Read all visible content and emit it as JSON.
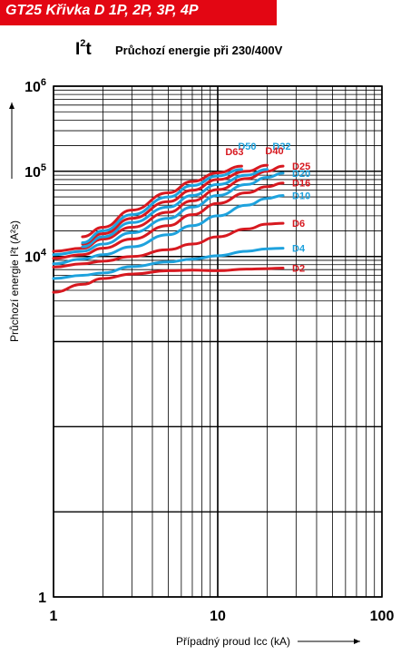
{
  "header": {
    "title": "GT25 Křivka D  1P, 2P, 3P, 4P",
    "bg_color": "#e30613"
  },
  "chart_heading": {
    "symbol": "I",
    "symbol_sup": "2",
    "symbol_suffix": "t",
    "subtitle": "Průchozí energie při 230/400V"
  },
  "chart_data": {
    "type": "line",
    "x_scale": "log",
    "y_scale": "log",
    "xlim": [
      1,
      100
    ],
    "ylim": [
      1,
      1000000
    ],
    "grid": true,
    "xlabel": "Případný proud  Icc (kA)",
    "ylabel": "Průchozí energie  I²t (A²s)",
    "x_ticks": [
      "1",
      "10",
      "100"
    ],
    "y_ticks": [
      {
        "base": "1",
        "exp": ""
      },
      {
        "base": "10",
        "exp": "4"
      },
      {
        "base": "10",
        "exp": "5"
      },
      {
        "base": "10",
        "exp": "6"
      }
    ],
    "series": [
      {
        "name": "D2",
        "color": "#d71920",
        "label_side": "right",
        "points": [
          [
            1,
            3800
          ],
          [
            1.5,
            4700
          ],
          [
            2,
            5500
          ],
          [
            3,
            6200
          ],
          [
            5,
            6800
          ],
          [
            7,
            6900
          ],
          [
            10,
            6800
          ],
          [
            15,
            7100
          ],
          [
            20,
            7200
          ],
          [
            25,
            7300
          ]
        ]
      },
      {
        "name": "D4",
        "color": "#1ea2dd",
        "label_side": "right",
        "points": [
          [
            1,
            5500
          ],
          [
            1.5,
            6000
          ],
          [
            2,
            6400
          ],
          [
            3,
            7600
          ],
          [
            5,
            8600
          ],
          [
            7,
            9300
          ],
          [
            10,
            10200
          ],
          [
            15,
            11500
          ],
          [
            20,
            12300
          ],
          [
            25,
            12500
          ]
        ]
      },
      {
        "name": "D6",
        "color": "#d71920",
        "label_side": "right",
        "points": [
          [
            1,
            7500
          ],
          [
            1.5,
            8200
          ],
          [
            2,
            8800
          ],
          [
            3,
            10000
          ],
          [
            5,
            12000
          ],
          [
            7,
            14000
          ],
          [
            10,
            17000
          ],
          [
            15,
            21000
          ],
          [
            20,
            24000
          ],
          [
            25,
            24500
          ]
        ]
      },
      {
        "name": "D10",
        "color": "#1ea2dd",
        "label_side": "right",
        "points": [
          [
            1,
            8200
          ],
          [
            1.5,
            9300
          ],
          [
            2,
            10500
          ],
          [
            3,
            13000
          ],
          [
            5,
            18000
          ],
          [
            7,
            23000
          ],
          [
            10,
            30000
          ],
          [
            15,
            40000
          ],
          [
            20,
            48000
          ],
          [
            25,
            52000
          ]
        ]
      },
      {
        "name": "D16",
        "color": "#d71920",
        "label_side": "right",
        "points": [
          [
            1,
            9500
          ],
          [
            1.5,
            10500
          ],
          [
            2,
            12500
          ],
          [
            3,
            16000
          ],
          [
            5,
            23000
          ],
          [
            7,
            31000
          ],
          [
            10,
            42000
          ],
          [
            15,
            56000
          ],
          [
            20,
            66000
          ],
          [
            25,
            73000
          ]
        ]
      },
      {
        "name": "D20",
        "color": "#1ea2dd",
        "label_side": "right",
        "points": [
          [
            1,
            10500
          ],
          [
            1.5,
            11500
          ],
          [
            2,
            14000
          ],
          [
            3,
            19000
          ],
          [
            5,
            28000
          ],
          [
            7,
            38000
          ],
          [
            10,
            52000
          ],
          [
            15,
            70000
          ],
          [
            20,
            85000
          ],
          [
            25,
            95000
          ]
        ]
      },
      {
        "name": "D25",
        "color": "#d71920",
        "label_side": "right",
        "points": [
          [
            1,
            11500
          ],
          [
            1.5,
            12500
          ],
          [
            2,
            16000
          ],
          [
            3,
            22000
          ],
          [
            5,
            33000
          ],
          [
            7,
            45000
          ],
          [
            10,
            61000
          ],
          [
            15,
            82000
          ],
          [
            20,
            100000
          ],
          [
            25,
            115000
          ]
        ]
      },
      {
        "name": "D32",
        "color": "#1ea2dd",
        "label_side": "top",
        "points": [
          [
            1.5,
            13000
          ],
          [
            2,
            17000
          ],
          [
            3,
            25000
          ],
          [
            5,
            38000
          ],
          [
            7,
            52000
          ],
          [
            10,
            70000
          ],
          [
            15,
            90000
          ],
          [
            20,
            105000
          ]
        ]
      },
      {
        "name": "D40",
        "color": "#d71920",
        "label_side": "top",
        "points": [
          [
            1.5,
            14000
          ],
          [
            2,
            18500
          ],
          [
            3,
            28000
          ],
          [
            5,
            44000
          ],
          [
            7,
            60000
          ],
          [
            10,
            80000
          ],
          [
            15,
            100000
          ],
          [
            20,
            118000
          ]
        ]
      },
      {
        "name": "D50",
        "color": "#1ea2dd",
        "label_side": "top",
        "points": [
          [
            1.5,
            14500
          ],
          [
            2,
            20000
          ],
          [
            3,
            31000
          ],
          [
            5,
            50000
          ],
          [
            7,
            68000
          ],
          [
            10,
            88000
          ],
          [
            14,
            105000
          ]
        ]
      },
      {
        "name": "D63",
        "color": "#d71920",
        "label_side": "top",
        "points": [
          [
            1.5,
            17000
          ],
          [
            2,
            22000
          ],
          [
            3,
            35000
          ],
          [
            5,
            56000
          ],
          [
            7,
            76000
          ],
          [
            10,
            96000
          ],
          [
            14,
            115000
          ]
        ]
      }
    ]
  }
}
